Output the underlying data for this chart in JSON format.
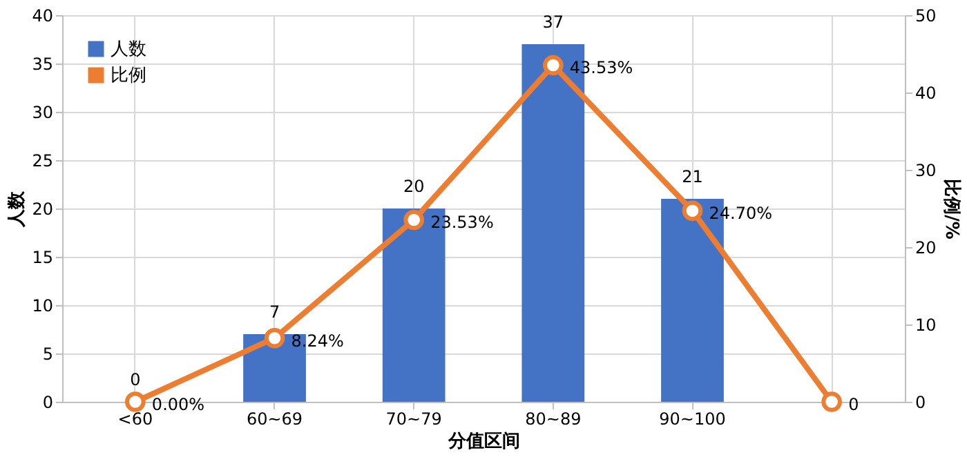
{
  "chart_data": {
    "type": "bar",
    "xlabel": "分值区间",
    "ylabel": "人数",
    "y2label": "比例/%",
    "categories": [
      "<60",
      "60~69",
      "70~79",
      "80~89",
      "90~100",
      null
    ],
    "series": [
      {
        "name": "人数",
        "color": "#4472c4",
        "values": [
          0,
          7,
          20,
          37,
          21,
          null
        ],
        "value_labels": [
          "0",
          "7",
          "20",
          "37",
          "21",
          null
        ]
      },
      {
        "name": "比例",
        "type": "line",
        "axis": "y2",
        "color": "#ed7d31",
        "marker": "circle",
        "values": [
          0,
          8.24,
          23.53,
          43.53,
          24.7,
          0
        ],
        "value_labels": [
          "0.00%",
          "8.24%",
          "23.53%",
          "43.53%",
          "24.70%",
          "0"
        ]
      }
    ],
    "ylim": [
      0,
      40
    ],
    "yticks": [
      0,
      5,
      10,
      15,
      20,
      25,
      30,
      35,
      40
    ],
    "y2lim": [
      0,
      50
    ],
    "y2ticks": [
      0,
      10,
      20,
      30,
      40,
      50
    ],
    "grid": true,
    "legend": "top left"
  }
}
